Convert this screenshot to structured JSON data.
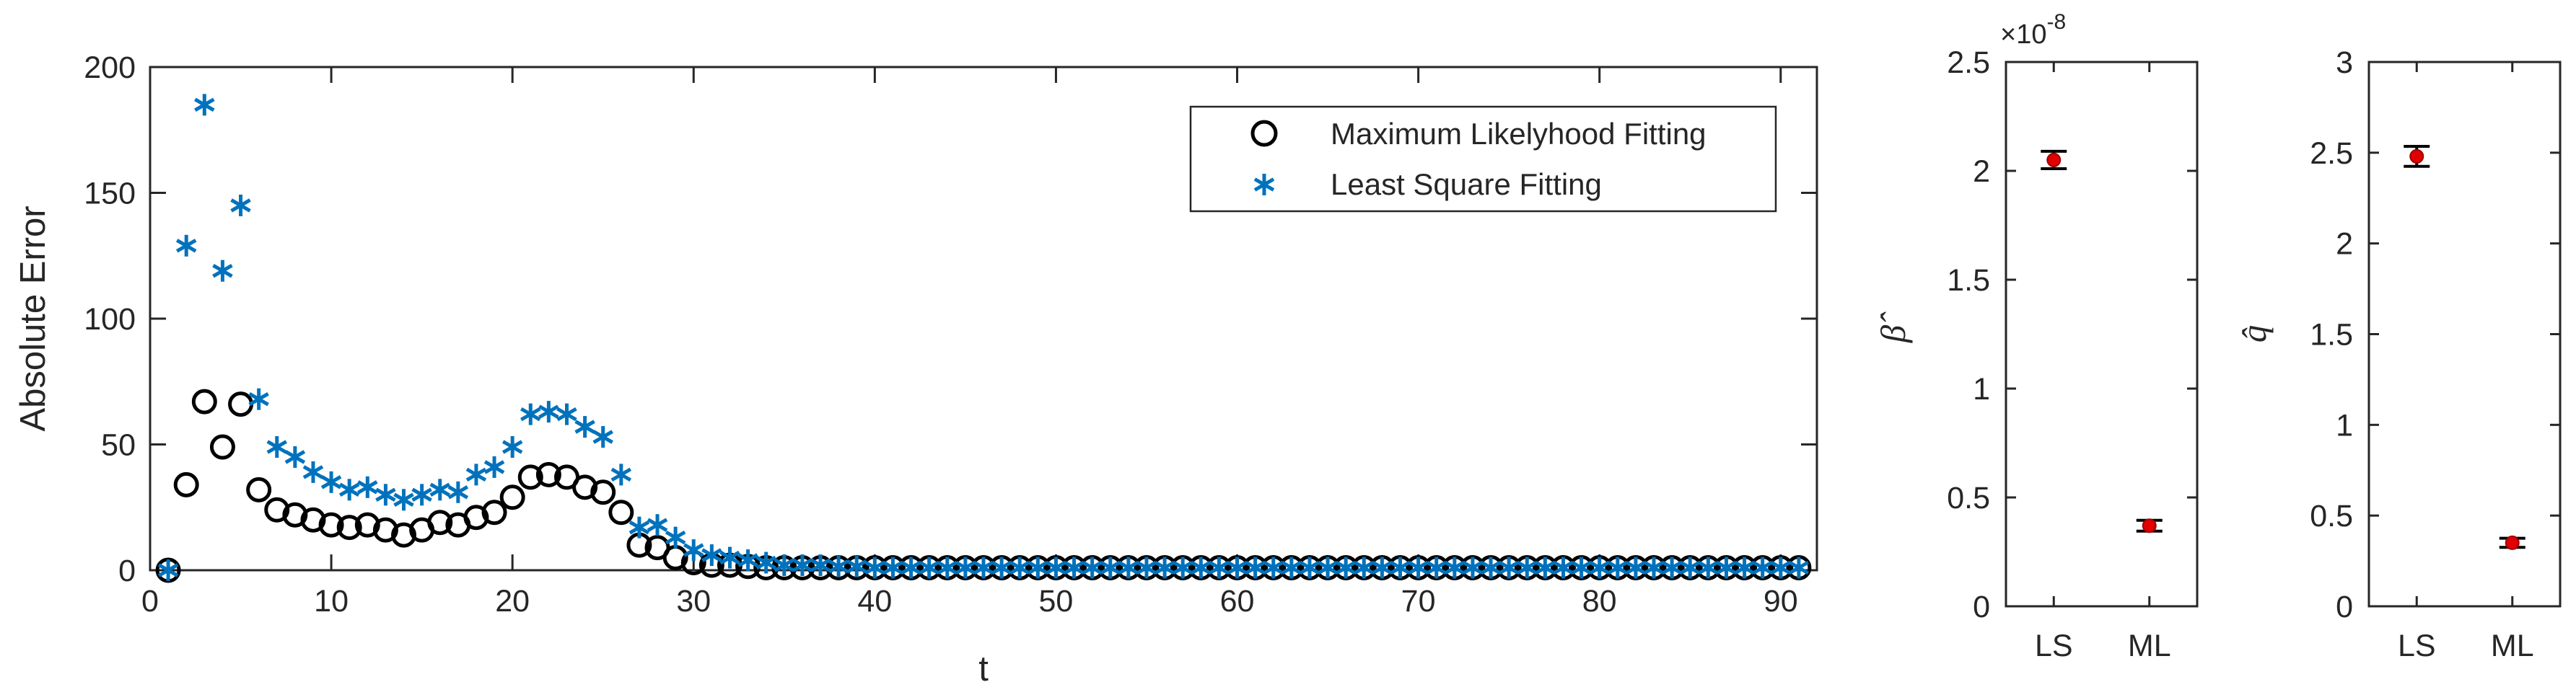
{
  "chart_data": [
    {
      "type": "scatter",
      "xlabel": "t",
      "ylabel": "Absolute Error",
      "xlim": [
        0,
        92
      ],
      "ylim": [
        0,
        200
      ],
      "xticks": [
        "0",
        "10",
        "20",
        "30",
        "40",
        "50",
        "60",
        "70",
        "80",
        "90"
      ],
      "yticks": [
        "0",
        "50",
        "100",
        "150",
        "200"
      ],
      "legend_position": "top-right",
      "series": [
        {
          "name": "Maximum Likelyhood Fitting",
          "marker": "circle",
          "color": "#000000",
          "x": [
            1,
            2,
            3,
            4,
            5,
            6,
            7,
            8,
            9,
            10,
            11,
            12,
            13,
            14,
            15,
            16,
            17,
            18,
            19,
            20,
            21,
            22,
            23,
            24,
            25,
            26,
            27,
            28,
            29,
            30,
            31,
            32,
            33,
            34,
            35,
            36,
            37,
            38,
            39,
            40,
            41,
            42,
            43,
            44,
            45,
            46,
            47,
            48,
            49,
            50,
            51,
            52,
            53,
            54,
            55,
            56,
            57,
            58,
            59,
            60,
            61,
            62,
            63,
            64,
            65,
            66,
            67,
            68,
            69,
            70,
            71,
            72,
            73,
            74,
            75,
            76,
            77,
            78,
            79,
            80,
            81,
            82,
            83,
            84,
            85,
            86,
            87,
            88,
            89,
            90,
            91
          ],
          "y": [
            0,
            34,
            67,
            49,
            66,
            32,
            24,
            22,
            20,
            18,
            17,
            18,
            16,
            14,
            16,
            19,
            18,
            21,
            23,
            29,
            37,
            38,
            37,
            33,
            31,
            23,
            10,
            9,
            5,
            3,
            2,
            2,
            1.5,
            1,
            1,
            1,
            1,
            1,
            1,
            1,
            1,
            1,
            1,
            1,
            1,
            1,
            1,
            1,
            1,
            1,
            1,
            1,
            1,
            1,
            1,
            1,
            1,
            1,
            1,
            1,
            1,
            1,
            1,
            1,
            1,
            1,
            1,
            1,
            1,
            1,
            1,
            1,
            1,
            1,
            1,
            1,
            1,
            1,
            1,
            1,
            1,
            1,
            1,
            1,
            1,
            1,
            1,
            1,
            1,
            1,
            1
          ]
        },
        {
          "name": "Least Square Fitting",
          "marker": "asterisk",
          "color": "#0072BD",
          "x": [
            1,
            2,
            3,
            4,
            5,
            6,
            7,
            8,
            9,
            10,
            11,
            12,
            13,
            14,
            15,
            16,
            17,
            18,
            19,
            20,
            21,
            22,
            23,
            24,
            25,
            26,
            27,
            28,
            29,
            30,
            31,
            32,
            33,
            34,
            35,
            36,
            37,
            38,
            39,
            40,
            41,
            42,
            43,
            44,
            45,
            46,
            47,
            48,
            49,
            50,
            51,
            52,
            53,
            54,
            55,
            56,
            57,
            58,
            59,
            60,
            61,
            62,
            63,
            64,
            65,
            66,
            67,
            68,
            69,
            70,
            71,
            72,
            73,
            74,
            75,
            76,
            77,
            78,
            79,
            80,
            81,
            82,
            83,
            84,
            85,
            86,
            87,
            88,
            89,
            90,
            91
          ],
          "y": [
            0,
            129,
            185,
            119,
            145,
            68,
            49,
            45,
            39,
            35,
            32,
            33,
            30,
            28,
            30,
            32,
            31,
            38,
            41,
            49,
            62,
            63,
            62,
            57,
            53,
            38,
            17,
            18,
            13,
            8,
            6,
            5,
            4,
            3,
            2,
            2,
            2,
            1.5,
            1.5,
            1,
            1,
            1,
            1,
            1,
            1,
            1,
            1,
            1,
            1,
            1,
            1,
            1,
            1,
            1,
            1,
            1,
            1,
            1,
            1,
            1,
            1,
            1,
            1,
            1,
            1,
            1,
            1,
            1,
            1,
            1,
            1,
            1,
            1,
            1,
            1,
            1,
            1,
            1,
            1,
            1,
            1,
            1,
            1,
            1,
            1,
            1,
            1,
            1,
            1,
            1,
            1
          ]
        }
      ]
    },
    {
      "type": "errorbar",
      "ylabel": "β̂",
      "exponent_label": "×10",
      "exponent_power": "-8",
      "categories": [
        "LS",
        "ML"
      ],
      "values": [
        2.05,
        0.37
      ],
      "errors": [
        0.04,
        0.025
      ],
      "ylim": [
        0,
        2.5
      ],
      "yticks": [
        "0",
        "0.5",
        "1",
        "1.5",
        "2",
        "2.5"
      ],
      "marker_color": "#E00000"
    },
    {
      "type": "errorbar",
      "ylabel": "q̂",
      "categories": [
        "LS",
        "ML"
      ],
      "values": [
        2.48,
        0.35
      ],
      "errors": [
        0.055,
        0.025
      ],
      "ylim": [
        0,
        3
      ],
      "yticks": [
        "0",
        "0.5",
        "1",
        "1.5",
        "2",
        "2.5",
        "3"
      ],
      "marker_color": "#E00000"
    }
  ]
}
